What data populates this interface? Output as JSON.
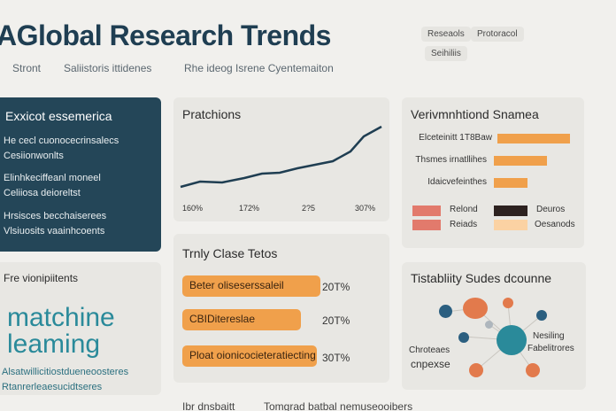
{
  "header": {
    "title": "AGlobal Research Trends",
    "nav": [
      "Stront",
      "Saliistoris ittidenes",
      "Rhe ideog Isrene Cyentemaiton"
    ],
    "pills": [
      "Reseaols",
      "Protoracol",
      "Seihiliis"
    ]
  },
  "cards": {
    "overview": {
      "title": "Exxicot essemerica",
      "lines": [
        "He cecl cuonocecrinsalecs",
        "Cesiionwonlts",
        "Elinhkeciffeanl moneel",
        "Celiiosa deioreltst",
        "Hrsisces becchaiserees",
        "Vlsiuosits vaainhcoents"
      ]
    },
    "predictions": {
      "title": "Pratchions",
      "x_ticks": [
        "160%",
        "172%",
        "2?5",
        "307%"
      ]
    },
    "variables": {
      "title": "Verivmnhtiond Snamea",
      "rows": [
        "Elceteinitt 1T8Baw",
        "Thsmes irnatllihes",
        "Idaicvefeinthes"
      ],
      "bar_values": [
        0.65,
        0.45,
        0.3
      ],
      "legend": [
        {
          "label": "Relond",
          "color": "#e27a6c"
        },
        {
          "label": "Deuros",
          "color": "#2d2220"
        },
        {
          "label": "Reiads",
          "color": "#e27a6c"
        },
        {
          "label": "Oesanods",
          "color": "#fbd2a3"
        }
      ]
    },
    "trends": {
      "title": "Trnly Clase Tetos",
      "items": [
        {
          "label": "Beter oliseserssaleil",
          "value": "20T%"
        },
        {
          "label": "CBIDitereslae",
          "value": "20T%"
        },
        {
          "label": "Ploat oionicocieteratiecting",
          "value": "30T%"
        }
      ]
    },
    "highlights": {
      "title": "Fre vionipiitents",
      "big_words": [
        "matchine",
        "leaming"
      ],
      "lines": [
        "Alsatwillicitiostdueneoosteres",
        "Rtanrerleaesucidtseres"
      ]
    },
    "network": {
      "title": "Tistabliity Sudes dcounne",
      "labels": [
        "Chroteaes",
        "cnpexse",
        "Nesiling",
        "Fabelitrores"
      ]
    }
  },
  "footer": [
    "Ibr dnsbaitt",
    "Tomgrad batbal nemuseooibers"
  ]
}
